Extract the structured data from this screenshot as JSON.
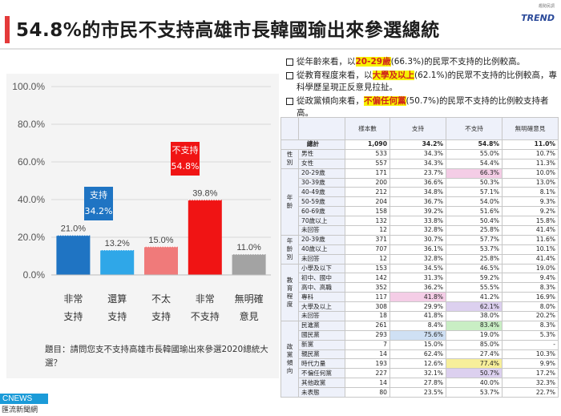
{
  "header": {
    "title": "54.8%的市民不支持高雄市長韓國瑜出來參選總統",
    "logo": "TREND",
    "logo_sub": "趨勢民調"
  },
  "notes": [
    {
      "pre": "從年齡來看，以",
      "hl": "20-29歲",
      "post": "(66.3%)的民眾不支持的比例較高。"
    },
    {
      "pre": "從教育程度來看，以",
      "hl": "大學及以上",
      "post": "(62.1%)的民眾不支持的比例較高，專科學歷呈現正反意見拉扯。"
    },
    {
      "pre": "從政黨傾向來看，",
      "hl": "不偏任何黨",
      "post": "(50.7%)的民眾不支持的比例較支持者高。"
    }
  ],
  "chart_data": {
    "type": "bar",
    "categories": [
      [
        "非常",
        "支持"
      ],
      [
        "還算",
        "支持"
      ],
      [
        "不太",
        "支持"
      ],
      [
        "非常",
        "不支持"
      ],
      [
        "無明確",
        "意見"
      ]
    ],
    "values": [
      21.0,
      13.2,
      15.0,
      39.8,
      11.0
    ],
    "value_labels": [
      "21.0%",
      "13.2%",
      "15.0%",
      "39.8%",
      "11.0%"
    ],
    "colors": [
      "#1f74c3",
      "#2fa7e8",
      "#f07a7a",
      "#f01414",
      "#a3a3a3"
    ],
    "ylim": [
      0,
      100
    ],
    "yticks": [
      "0.0%",
      "20.0%",
      "40.0%",
      "60.0%",
      "80.0%",
      "100.0%"
    ],
    "tick_values": [
      0,
      20,
      40,
      60,
      80,
      100
    ],
    "callouts": [
      {
        "label": "支持",
        "value": "34.2%",
        "color": "#1f74c3"
      },
      {
        "label": "不支持",
        "value": "54.8%",
        "color": "#f01414"
      }
    ]
  },
  "question": "題目：請問您支不支持高雄市長韓國瑜出來參選2020總統大選？",
  "cnews": {
    "top": "CNEWS",
    "bottom": "匯流新聞網"
  },
  "table": {
    "headers": [
      "",
      "",
      "樣本數",
      "支持",
      "不支持",
      "無明確意見"
    ],
    "total": {
      "label": "總計",
      "n": "1,090",
      "support": "34.2%",
      "oppose": "54.8%",
      "none": "11.0%"
    },
    "groups": [
      {
        "name": "性別",
        "rows": [
          {
            "label": "男性",
            "n": "533",
            "support": "34.3%",
            "oppose": "55.0%",
            "none": "10.7%"
          },
          {
            "label": "女性",
            "n": "557",
            "support": "34.3%",
            "oppose": "54.4%",
            "none": "11.3%"
          }
        ]
      },
      {
        "name": "年齡",
        "rows": [
          {
            "label": "20-29歲",
            "n": "171",
            "support": "23.7%",
            "oppose": "66.3%",
            "none": "10.0%",
            "hl_col": "oppose",
            "hl": "pink"
          },
          {
            "label": "30-39歲",
            "n": "200",
            "support": "36.6%",
            "oppose": "50.3%",
            "none": "13.0%"
          },
          {
            "label": "40-49歲",
            "n": "212",
            "support": "34.8%",
            "oppose": "57.1%",
            "none": "8.1%"
          },
          {
            "label": "50-59歲",
            "n": "204",
            "support": "36.7%",
            "oppose": "54.0%",
            "none": "9.3%"
          },
          {
            "label": "60-69歲",
            "n": "158",
            "support": "39.2%",
            "oppose": "51.6%",
            "none": "9.2%"
          },
          {
            "label": "70歲以上",
            "n": "132",
            "support": "33.8%",
            "oppose": "50.4%",
            "none": "15.8%"
          },
          {
            "label": "未回答",
            "n": "12",
            "support": "32.8%",
            "oppose": "25.8%",
            "none": "41.4%"
          }
        ]
      },
      {
        "name": "年齡別",
        "rows": [
          {
            "label": "20-39歲",
            "n": "371",
            "support": "30.7%",
            "oppose": "57.7%",
            "none": "11.6%"
          },
          {
            "label": "40歲以上",
            "n": "707",
            "support": "36.1%",
            "oppose": "53.7%",
            "none": "10.1%"
          },
          {
            "label": "未回答",
            "n": "12",
            "support": "32.8%",
            "oppose": "25.8%",
            "none": "41.4%"
          }
        ]
      },
      {
        "name": "教育程度",
        "rows": [
          {
            "label": "小學及以下",
            "n": "153",
            "support": "34.5%",
            "oppose": "46.5%",
            "none": "19.0%"
          },
          {
            "label": "初中、國中",
            "n": "142",
            "support": "31.3%",
            "oppose": "59.2%",
            "none": "9.4%"
          },
          {
            "label": "高中、高職",
            "n": "352",
            "support": "36.2%",
            "oppose": "55.5%",
            "none": "8.3%"
          },
          {
            "label": "專科",
            "n": "117",
            "support": "41.8%",
            "oppose": "41.2%",
            "none": "16.9%",
            "hl_col": "support",
            "hl": "pink"
          },
          {
            "label": "大學及以上",
            "n": "308",
            "support": "29.9%",
            "oppose": "62.1%",
            "none": "8.0%",
            "hl_col": "oppose",
            "hl": "purple"
          },
          {
            "label": "未回答",
            "n": "18",
            "support": "41.8%",
            "oppose": "38.0%",
            "none": "20.2%"
          }
        ]
      },
      {
        "name": "政黨傾向",
        "rows": [
          {
            "label": "民進黨",
            "n": "261",
            "support": "8.4%",
            "oppose": "83.4%",
            "none": "8.3%",
            "hl_col": "oppose",
            "hl": "green"
          },
          {
            "label": "國民黨",
            "n": "293",
            "support": "75.6%",
            "oppose": "19.0%",
            "none": "5.3%",
            "hl_col": "support",
            "hl": "blue"
          },
          {
            "label": "新黨",
            "n": "7",
            "support": "15.0%",
            "oppose": "85.0%",
            "none": "-"
          },
          {
            "label": "親民黨",
            "n": "14",
            "support": "62.4%",
            "oppose": "27.4%",
            "none": "10.3%"
          },
          {
            "label": "時代力量",
            "n": "193",
            "support": "12.6%",
            "oppose": "77.4%",
            "none": "9.9%",
            "hl_col": "oppose",
            "hl": "yellow"
          },
          {
            "label": "不偏任何黨",
            "n": "227",
            "support": "32.1%",
            "oppose": "50.7%",
            "none": "17.2%",
            "hl_col": "oppose",
            "hl": "purple"
          },
          {
            "label": "其他政黨",
            "n": "14",
            "support": "27.8%",
            "oppose": "40.0%",
            "none": "32.3%"
          },
          {
            "label": "未表態",
            "n": "80",
            "support": "23.5%",
            "oppose": "53.7%",
            "none": "22.7%"
          }
        ]
      }
    ]
  }
}
